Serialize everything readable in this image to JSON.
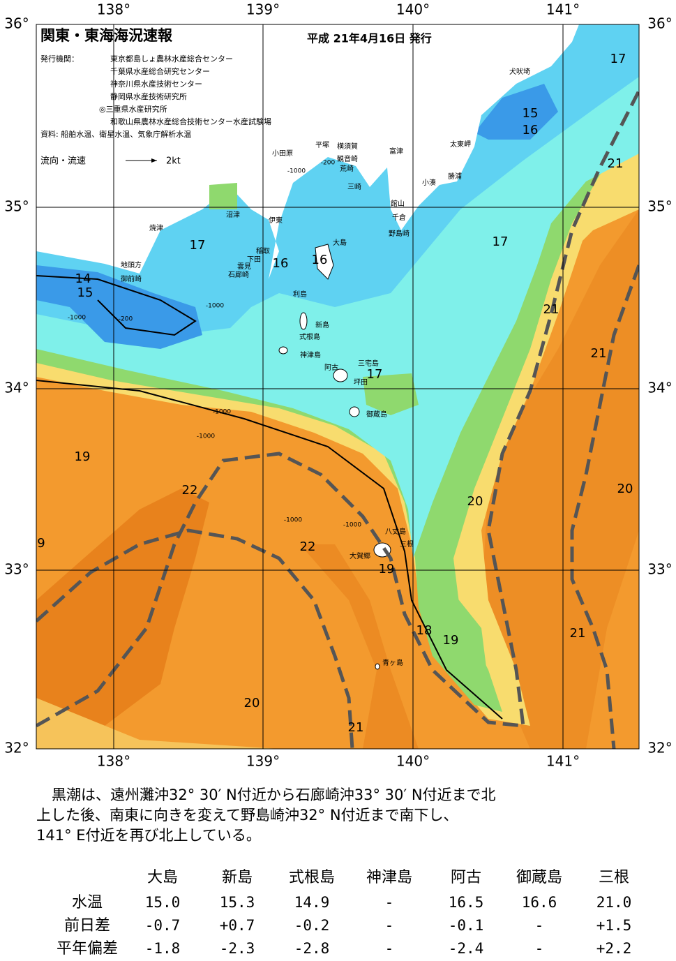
{
  "header": {
    "title": "関東・東海海況速報",
    "date": "平成 21年4月16日 発行",
    "issuers_label": "発行機関：",
    "issuers": [
      "東京都島しょ農林水産総合センター",
      "千葉県水産総合研究センター",
      "神奈川県水産技術センター",
      "静岡県水産技術研究所",
      "◎三重県水産研究所",
      "和歌山県農林水産総合技術センター水産試験場"
    ],
    "sources": "資料: 船舶水温、衛星水温、気象庁解析水温",
    "legend_label": "流向・流速",
    "legend_speed": "2kt"
  },
  "map": {
    "lon_labels": [
      "138°",
      "139°",
      "140°",
      "141°"
    ],
    "lat_labels": [
      "36°",
      "35°",
      "34°",
      "33°",
      "32°"
    ],
    "place_names": [
      "犬吠埼",
      "太東岬",
      "勝浦",
      "小湊",
      "富津",
      "横須賀",
      "観音崎",
      "荒崎",
      "平塚",
      "小田原",
      "三崎",
      "館山",
      "千倉",
      "野島崎",
      "大島",
      "沼津",
      "伊東",
      "稲取",
      "下田",
      "雲見",
      "石廊崎",
      "焼津",
      "地頭方",
      "御前崎",
      "利島",
      "新島",
      "式根島",
      "神津島",
      "阿古",
      "三宅島",
      "坪田",
      "御蔵島",
      "八丈島",
      "三根",
      "大賀郷",
      "青ヶ島"
    ],
    "temperature_labels": [
      17,
      15,
      16,
      21,
      17,
      16,
      16,
      17,
      14,
      15,
      21,
      21,
      17,
      19,
      22,
      20,
      20,
      9,
      22,
      19,
      18,
      19,
      21,
      20,
      21
    ],
    "depth_labels": [
      "-1000",
      "-200",
      "-1000",
      "-200",
      "-1000",
      "-1000",
      "-1000",
      "-1000",
      "-1000"
    ]
  },
  "description": [
    "黒潮は、遠州灘沖32° 30′ N付近から石廊崎沖33° 30′ N付近まで北",
    "上した後、南東に向きを変えて野島崎沖32° N付近まで南下し、",
    "141° E付近を再び北上している。"
  ],
  "table": {
    "columns": [
      "大島",
      "新島",
      "式根島",
      "神津島",
      "阿古",
      "御蔵島",
      "三根"
    ],
    "rows": [
      {
        "label": "水温",
        "cells": [
          "15.0",
          "15.3",
          "14.9",
          "-",
          "16.5",
          "16.6",
          "21.0"
        ]
      },
      {
        "label": "前日差",
        "cells": [
          "-0.7",
          "+0.7",
          "-0.2",
          "-",
          "-0.1",
          "-",
          "+1.5"
        ]
      },
      {
        "label": "平年偏差",
        "cells": [
          "-1.8",
          "-2.3",
          "-2.8",
          "-",
          "-2.4",
          "-",
          "+2.2"
        ]
      }
    ]
  }
}
